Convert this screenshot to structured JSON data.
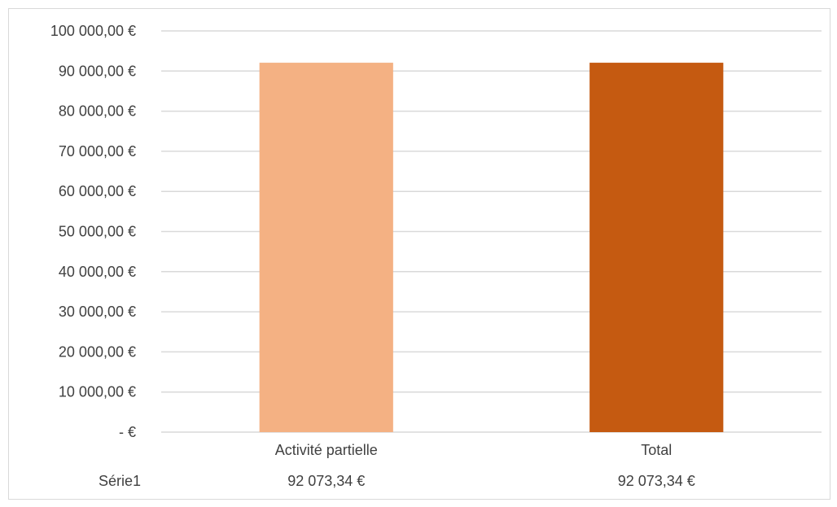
{
  "chart_data": {
    "type": "bar",
    "categories": [
      "Activité partielle",
      "Total"
    ],
    "series": [
      {
        "name": "Série1",
        "values": [
          92073.34,
          92073.34
        ],
        "value_labels": [
          "92 073,34 €",
          "92 073,34 €"
        ],
        "colors": [
          "#F4B183",
          "#C55A11"
        ]
      }
    ],
    "ylim": [
      0,
      100000
    ],
    "y_ticks": [
      0,
      10000,
      20000,
      30000,
      40000,
      50000,
      60000,
      70000,
      80000,
      90000,
      100000
    ],
    "y_tick_labels": [
      "-   €",
      "10 000,00 €",
      "20 000,00 €",
      "30 000,00 €",
      "40 000,00 €",
      "50 000,00 €",
      "60 000,00 €",
      "70 000,00 €",
      "80 000,00 €",
      "90 000,00 €",
      "100 000,00 €"
    ],
    "grid": true,
    "grid_color": "#d9d9d9",
    "data_table": true,
    "title": "",
    "xlabel": "",
    "ylabel": ""
  }
}
